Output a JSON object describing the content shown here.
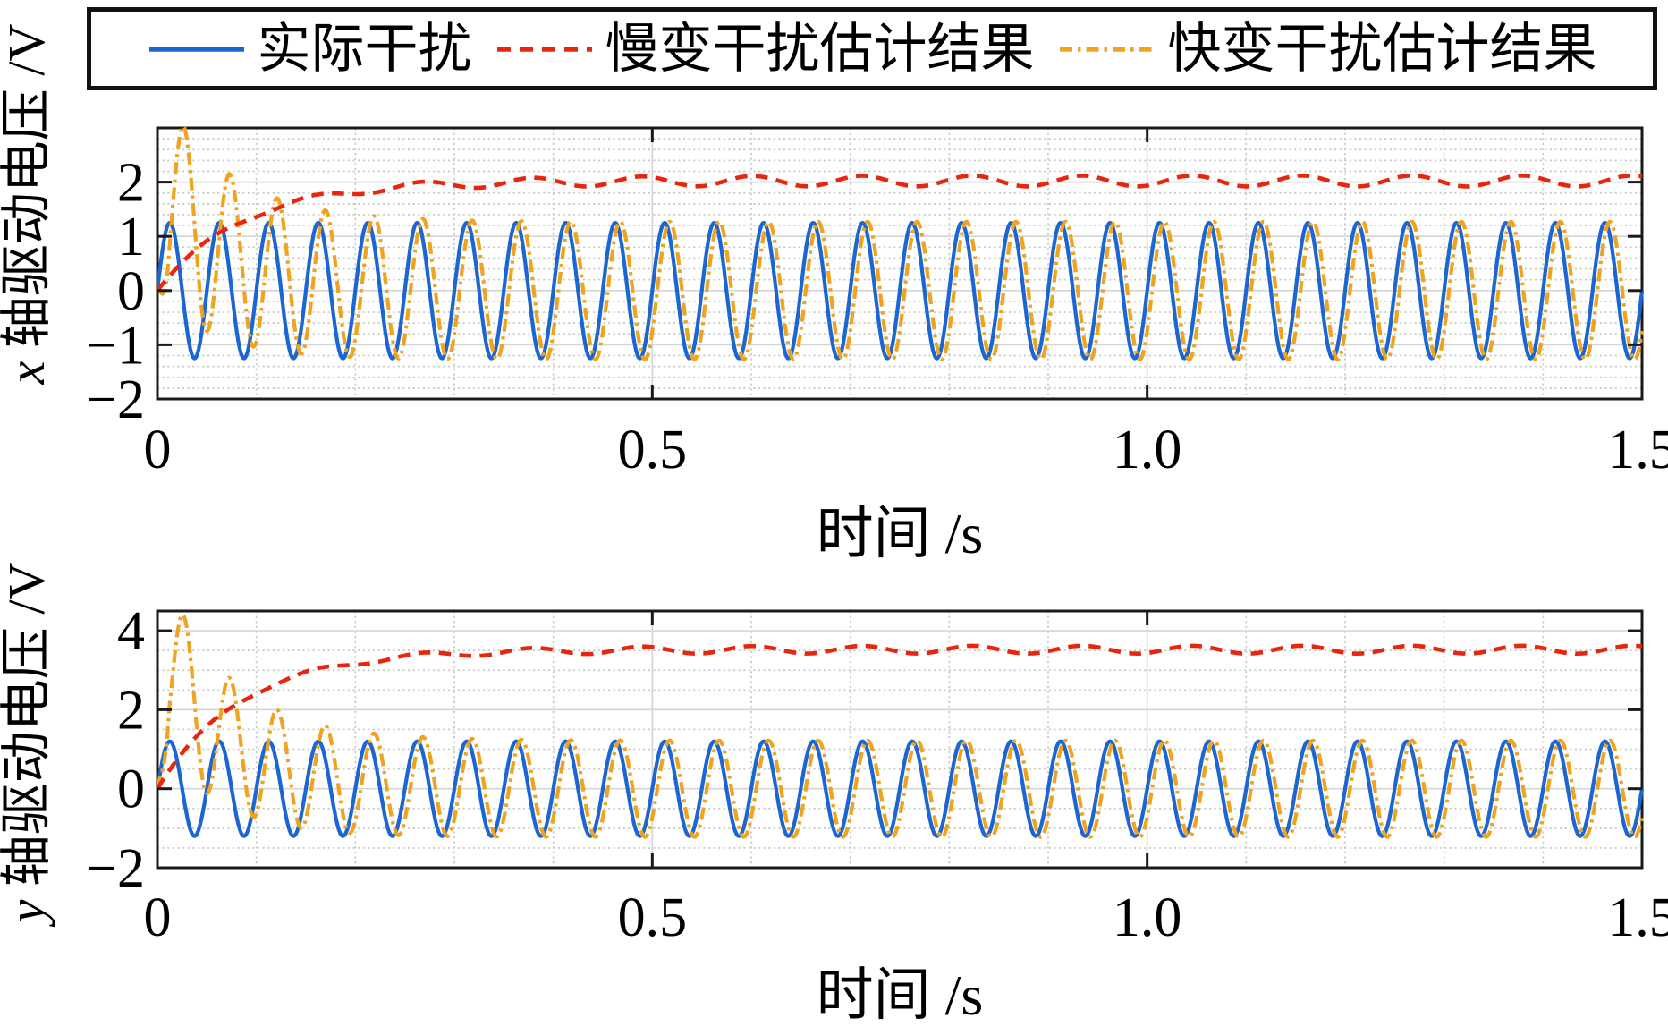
{
  "legend": {
    "items": [
      {
        "label": "实际干扰",
        "color": "#1b66d2",
        "style": "solid"
      },
      {
        "label": "慢变干扰估计结果",
        "color": "#e7260f",
        "style": "dashed"
      },
      {
        "label": "快变干扰估计结果",
        "color": "#f0a31f",
        "style": "dashdot"
      }
    ]
  },
  "chart_data": [
    {
      "type": "line",
      "ylabel": {
        "var": "x",
        "rest": " 轴驱动电压 /V"
      },
      "xlabel": "时间 /s",
      "xlim": [
        0,
        1.5
      ],
      "ylim": [
        -2,
        3.0
      ],
      "xtick_values": [
        0,
        0.5,
        1.0,
        1.5
      ],
      "xtick_labels": [
        "0",
        "0.5",
        "1.0",
        "1.5"
      ],
      "ytick_values": [
        -2,
        -1,
        0,
        1,
        2
      ],
      "ytick_labels": [
        "−2",
        "−1",
        "0",
        "1",
        "2"
      ],
      "x_minor_step": 0.1,
      "y_minor_step": 0.2,
      "grid": "major-solid, minor-dotted",
      "series": [
        {
          "name": "实际干扰",
          "type": "sine",
          "color": "#1b66d2",
          "style": "solid",
          "amplitude": 1.25,
          "frequency_hz": 20,
          "phase": 0
        },
        {
          "name": "快变干扰估计结果",
          "type": "decaying_tracking",
          "color": "#f0a31f",
          "style": "dashdot",
          "converged_amplitude": 1.27,
          "frequency_hz": 20,
          "initial_peak": 2.9,
          "offset0": 1.9,
          "offset_tau_s": 0.065,
          "amp_boost": 0.55,
          "amp_tau_s": 0.075,
          "lag_s": 0.005,
          "lag_decay_s": 0.012,
          "lag_tau_s": 0.1,
          "settle_time_s": 0.3
        },
        {
          "name": "慢变干扰估计结果",
          "type": "first_order_rise",
          "color": "#e7260f",
          "style": "dashed",
          "steady_level": 2.02,
          "tau_s": 0.085,
          "ripple_amplitude": 0.1,
          "ripple_frequency_hz": 9
        }
      ]
    },
    {
      "type": "line",
      "ylabel": {
        "var": "y",
        "rest": " 轴驱动电压 /V"
      },
      "xlabel": "时间 /s",
      "xlim": [
        0,
        1.5
      ],
      "ylim": [
        -2,
        4.5
      ],
      "xtick_values": [
        0,
        0.5,
        1.0,
        1.5
      ],
      "xtick_labels": [
        "0",
        "0.5",
        "1.0",
        "1.5"
      ],
      "ytick_values": [
        -2,
        0,
        2,
        4
      ],
      "ytick_labels": [
        "−2",
        "0",
        "2",
        "4"
      ],
      "x_minor_step": 0.1,
      "y_minor_step": 0.5,
      "grid": "major-solid, minor-dotted",
      "series": [
        {
          "name": "实际干扰",
          "type": "sine",
          "color": "#1b66d2",
          "style": "solid",
          "amplitude": 1.2,
          "frequency_hz": 20,
          "phase": 0
        },
        {
          "name": "快变干扰估计结果",
          "type": "decaying_tracking",
          "color": "#f0a31f",
          "style": "dashdot",
          "converged_amplitude": 1.22,
          "frequency_hz": 20,
          "initial_peak": 4.4,
          "offset0": 3.6,
          "offset_tau_s": 0.065,
          "amp_boost": 0.9,
          "amp_tau_s": 0.075,
          "lag_s": 0.005,
          "lag_decay_s": 0.012,
          "lag_tau_s": 0.1,
          "settle_time_s": 0.3
        },
        {
          "name": "慢变干扰估计结果",
          "type": "first_order_rise",
          "color": "#e7260f",
          "style": "dashed",
          "steady_level": 3.52,
          "tau_s": 0.085,
          "ripple_amplitude": 0.1,
          "ripple_frequency_hz": 9
        }
      ]
    }
  ]
}
